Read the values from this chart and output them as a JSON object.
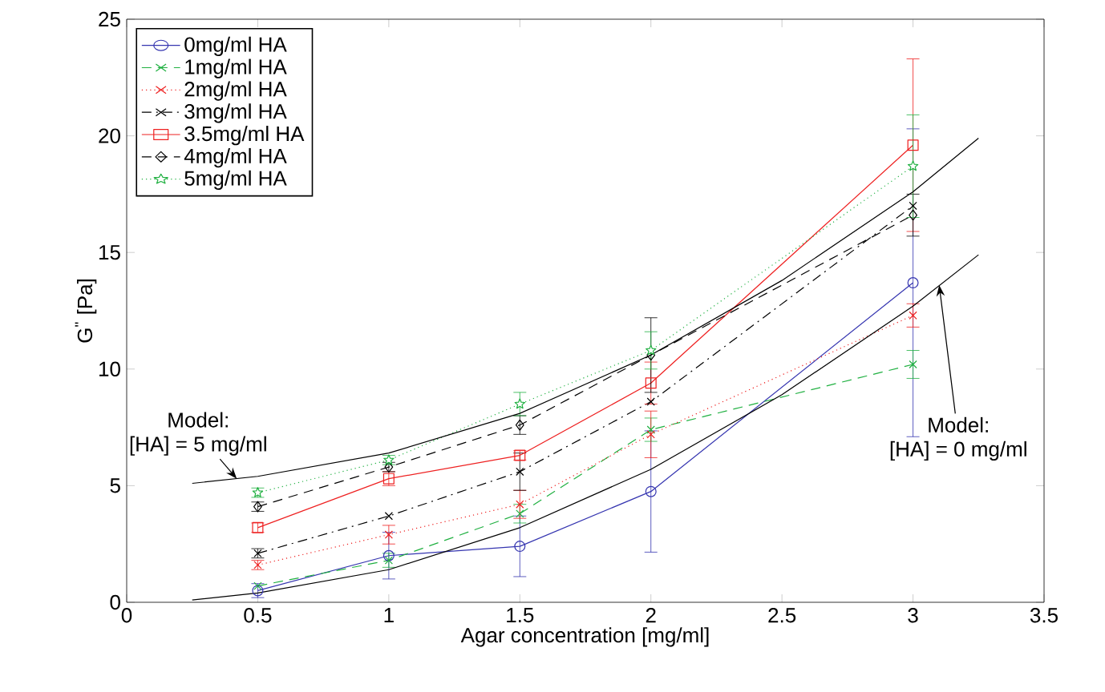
{
  "chart_data": {
    "type": "line",
    "xlabel": "Agar concentration [mg/ml]",
    "ylabel": "G$^{''}$ [Pa]",
    "x": [
      0.5,
      1,
      1.5,
      2,
      3
    ],
    "series": [
      {
        "name": "0mg/ml HA",
        "color": "#3535b0",
        "values": [
          0.5,
          2.0,
          2.4,
          4.75,
          13.7
        ],
        "errors": [
          0.3,
          1.0,
          1.3,
          2.6,
          6.6
        ],
        "marker": "circle",
        "line_style": "solid"
      },
      {
        "name": "1mg/ml HA",
        "color": "#1fb040",
        "values": [
          0.7,
          1.8,
          3.8,
          7.4,
          10.2
        ],
        "errors": [
          null,
          0.3,
          0.4,
          0.5,
          0.6
        ],
        "marker": "cross",
        "line_style": "dashed"
      },
      {
        "name": "2mg/ml HA",
        "color": "#ee2020",
        "values": [
          1.6,
          2.9,
          4.2,
          7.2,
          12.3
        ],
        "errors": [
          0.2,
          0.4,
          0.6,
          1.0,
          0.5
        ],
        "marker": "cross",
        "line_style": "dotted"
      },
      {
        "name": "3mg/ml HA",
        "color": "#000000",
        "values": [
          2.1,
          3.7,
          5.6,
          8.6,
          17.0
        ],
        "errors": [
          0.2,
          null,
          0.8,
          null,
          null
        ],
        "marker": "cross",
        "line_style": "dashdot"
      },
      {
        "name": "3.5mg/ml HA",
        "color": "#ee2020",
        "values": [
          3.2,
          5.3,
          6.3,
          9.4,
          19.6
        ],
        "errors": [
          0.2,
          0.3,
          0.2,
          0.9,
          3.7
        ],
        "marker": "square",
        "line_style": "solid"
      },
      {
        "name": "4mg/ml HA",
        "color": "#000000",
        "values": [
          4.1,
          5.8,
          7.6,
          10.6,
          16.6
        ],
        "errors": [
          0.2,
          0.2,
          0.4,
          1.6,
          0.9
        ],
        "marker": "diamond",
        "line_style": "dashed"
      },
      {
        "name": "5mg/ml HA",
        "color": "#1fb040",
        "values": [
          4.7,
          6.1,
          8.5,
          10.8,
          18.7
        ],
        "errors": [
          0.2,
          0.2,
          0.5,
          0.8,
          2.2
        ],
        "marker": "star",
        "line_style": "dotted"
      },
      {
        "color": "#000000",
        "x": [
          0.25,
          0.5,
          1,
          1.5,
          2,
          2.5,
          3,
          3.25
        ],
        "values": [
          5.1,
          5.4,
          6.4,
          8.1,
          10.6,
          13.8,
          17.6,
          19.9
        ],
        "marker": "none",
        "line_style": "solid"
      },
      {
        "color": "#000000",
        "x": [
          0.25,
          0.5,
          1,
          1.5,
          2,
          2.5,
          3,
          3.25
        ],
        "values": [
          0.1,
          0.4,
          1.4,
          3.2,
          5.7,
          8.9,
          12.7,
          14.9
        ],
        "marker": "none",
        "line_style": "solid"
      }
    ],
    "xlim": [
      0,
      3.5
    ],
    "xticks": [
      0,
      0.5,
      1,
      1.5,
      2,
      2.5,
      3,
      3.5
    ],
    "ylim": [
      0,
      25
    ],
    "yticks": [
      0,
      5,
      10,
      15,
      20,
      25
    ],
    "legend": "top left",
    "grid": false,
    "annotations": [
      "Model:",
      {
        "text": "[HA] = 5 mg/ml",
        "x": 0.42,
        "y": 5.3
      },
      {
        "text": "Model:",
        "x": 3.1,
        "y": 13.6
      },
      "[HA] = 0 mg/ml"
    ]
  }
}
